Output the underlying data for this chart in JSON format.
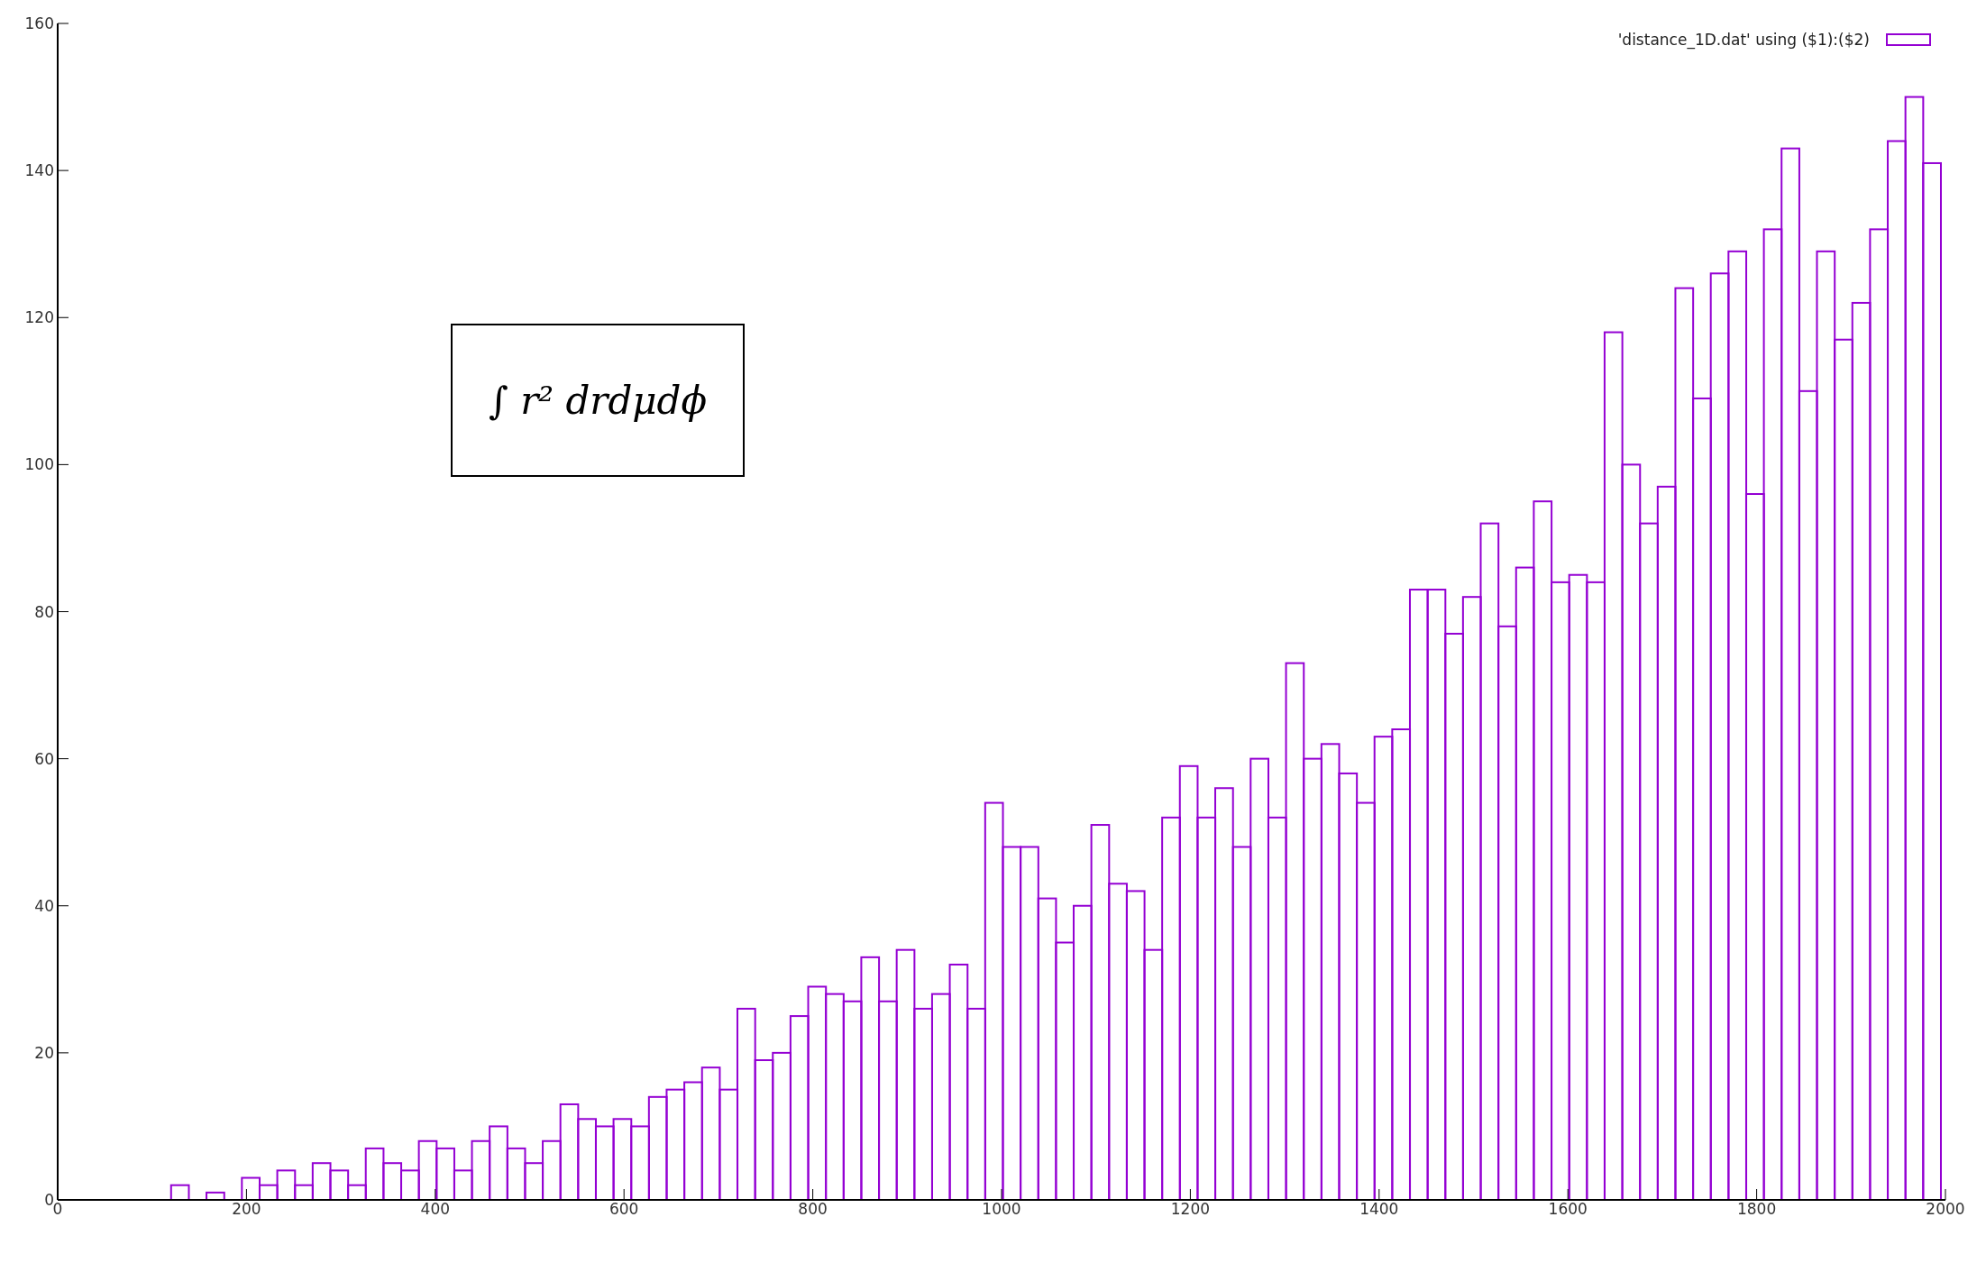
{
  "chart_data": {
    "type": "histogram",
    "bins": [
      120,
      138.75,
      157.5,
      176.25,
      195,
      213.75,
      232.5,
      251.25,
      270,
      288.75,
      307.5,
      326.25,
      345,
      363.75,
      382.5,
      401.25,
      420,
      438.75,
      457.5,
      476.25,
      495,
      513.75,
      532.5,
      551.25,
      570,
      588.75,
      607.5,
      626.25,
      645,
      663.75,
      682.5,
      701.25,
      720,
      738.75,
      757.5,
      776.25,
      795,
      813.75,
      832.5,
      851.25,
      870,
      888.75,
      907.5,
      926.25,
      945,
      963.75,
      982.5,
      1001.25,
      1020,
      1038.75,
      1057.5,
      1076.25,
      1095,
      1113.75,
      1132.5,
      1151.25,
      1170,
      1188.75,
      1207.5,
      1226.25,
      1245,
      1263.75,
      1282.5,
      1301.25,
      1320,
      1338.75,
      1357.5,
      1376.25,
      1395,
      1413.75,
      1432.5,
      1451.25,
      1470,
      1488.75,
      1507.5,
      1526.25,
      1545,
      1563.75,
      1582.5,
      1601.25,
      1620,
      1638.75,
      1657.5,
      1676.25,
      1695,
      1713.75,
      1732.5,
      1751.25,
      1770,
      1788.75,
      1807.5,
      1826.25,
      1845,
      1863.75,
      1882.5,
      1901.25,
      1920,
      1938.75,
      1957.5,
      1976.25,
      1995
    ],
    "series": [
      {
        "name": "'distance_1D.dat' using ($1):($2)",
        "color": "#9400d3",
        "values": [
          2,
          0,
          1,
          0,
          3,
          2,
          4,
          2,
          5,
          4,
          2,
          7,
          5,
          4,
          8,
          7,
          4,
          8,
          10,
          7,
          5,
          8,
          13,
          11,
          10,
          11,
          10,
          14,
          15,
          16,
          18,
          15,
          26,
          19,
          20,
          25,
          29,
          28,
          27,
          33,
          27,
          34,
          26,
          28,
          32,
          26,
          54,
          48,
          48,
          41,
          35,
          40,
          51,
          43,
          42,
          34,
          52,
          59,
          52,
          56,
          48,
          60,
          52,
          73,
          60,
          62,
          58,
          54,
          63,
          64,
          83,
          83,
          77,
          82,
          92,
          78,
          86,
          95,
          84,
          85,
          84,
          118,
          100,
          92,
          97,
          124,
          109,
          126,
          129,
          96,
          132,
          143,
          110,
          129,
          117,
          122,
          132,
          144,
          150,
          141
        ]
      }
    ],
    "xlim": [
      0,
      2000
    ],
    "xticks": [
      0,
      200,
      400,
      600,
      800,
      1000,
      1200,
      1400,
      1600,
      1800,
      2000
    ],
    "ylim": [
      0,
      160
    ],
    "yticks": [
      0,
      20,
      40,
      60,
      80,
      100,
      120,
      140,
      160
    ],
    "annotations": [
      "∫ r² drdμdϕ"
    ],
    "legend": "top right",
    "grid": false
  }
}
